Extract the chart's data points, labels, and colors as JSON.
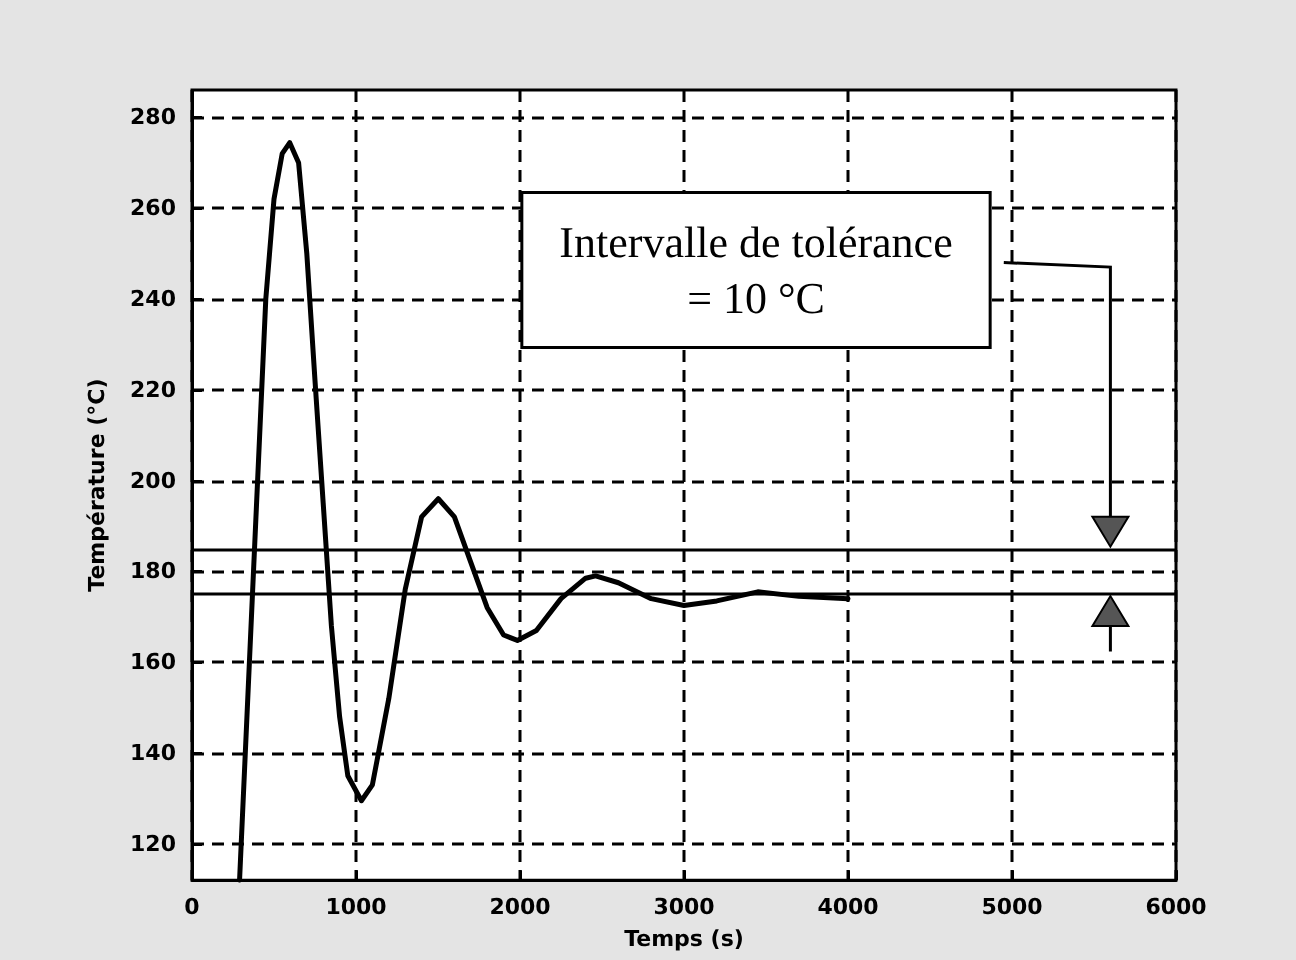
{
  "chart_data": {
    "type": "line",
    "xlabel": "Temps (s)",
    "ylabel": "Température (°C)",
    "annotations": [
      "Intervalle de tolérance\n= 10 °C"
    ],
    "series": [
      {
        "color": "#000000",
        "x": [
          290,
          350,
          400,
          450,
          500,
          550,
          596,
          650,
          700,
          750,
          800,
          850,
          900,
          950,
          1033,
          1100,
          1200,
          1300,
          1400,
          1502,
          1600,
          1700,
          1800,
          1900,
          1984,
          2100,
          2250,
          2400,
          2461,
          2600,
          2800,
          3000,
          3200,
          3450,
          3700,
          4000
        ],
        "values": [
          112,
          160,
          200,
          240,
          262,
          272,
          274.4,
          270,
          250,
          222,
          195,
          168,
          148,
          135,
          129.5,
          133,
          152,
          176,
          192,
          196,
          192,
          182,
          172,
          166,
          164.8,
          167,
          174,
          178.5,
          179,
          177.5,
          174,
          172.5,
          173.5,
          175.5,
          174.5,
          174
        ]
      }
    ],
    "ref_lines": [
      {
        "axis": "y",
        "value": 185,
        "color": "#000000"
      },
      {
        "axis": "y",
        "value": 175,
        "color": "#000000"
      }
    ],
    "xlim": [
      0,
      6000
    ],
    "xticks": [
      0,
      1000,
      2000,
      3000,
      4000,
      5000,
      6000
    ],
    "ylim": [
      112,
      286
    ],
    "yticks": [
      120,
      140,
      160,
      180,
      200,
      220,
      240,
      260,
      280
    ],
    "grid": true,
    "marker": "none",
    "line_style": "solid"
  }
}
